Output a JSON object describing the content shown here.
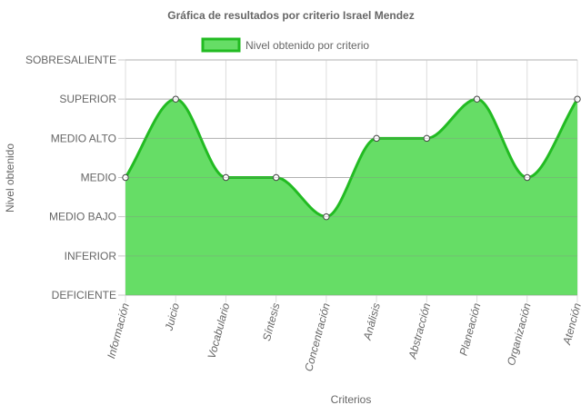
{
  "chart_data": {
    "type": "area",
    "title": "Gráfica de resultados por criterio Israel Mendez",
    "xlabel": "Criterios",
    "ylabel": "Nivel obtenido",
    "legend_position": "top",
    "grid": true,
    "y_levels": [
      "DEFICIENTE",
      "INFERIOR",
      "MEDIO BAJO",
      "MEDIO",
      "MEDIO ALTO",
      "SUPERIOR",
      "SOBRESALIENTE"
    ],
    "categories": [
      "Información",
      "Juicio",
      "Vocabulario",
      "Síntesis",
      "Concentración",
      "Análisis",
      "Abstracción",
      "Planeación",
      "Organización",
      "Atención"
    ],
    "series": [
      {
        "name": "Nivel obtenido por criterio",
        "values": [
          "MEDIO",
          "SUPERIOR",
          "MEDIO",
          "MEDIO",
          "MEDIO BAJO",
          "MEDIO ALTO",
          "MEDIO ALTO",
          "SUPERIOR",
          "MEDIO",
          "SUPERIOR"
        ],
        "fill_color": "#66dd66",
        "line_color": "#22bb22"
      }
    ]
  }
}
